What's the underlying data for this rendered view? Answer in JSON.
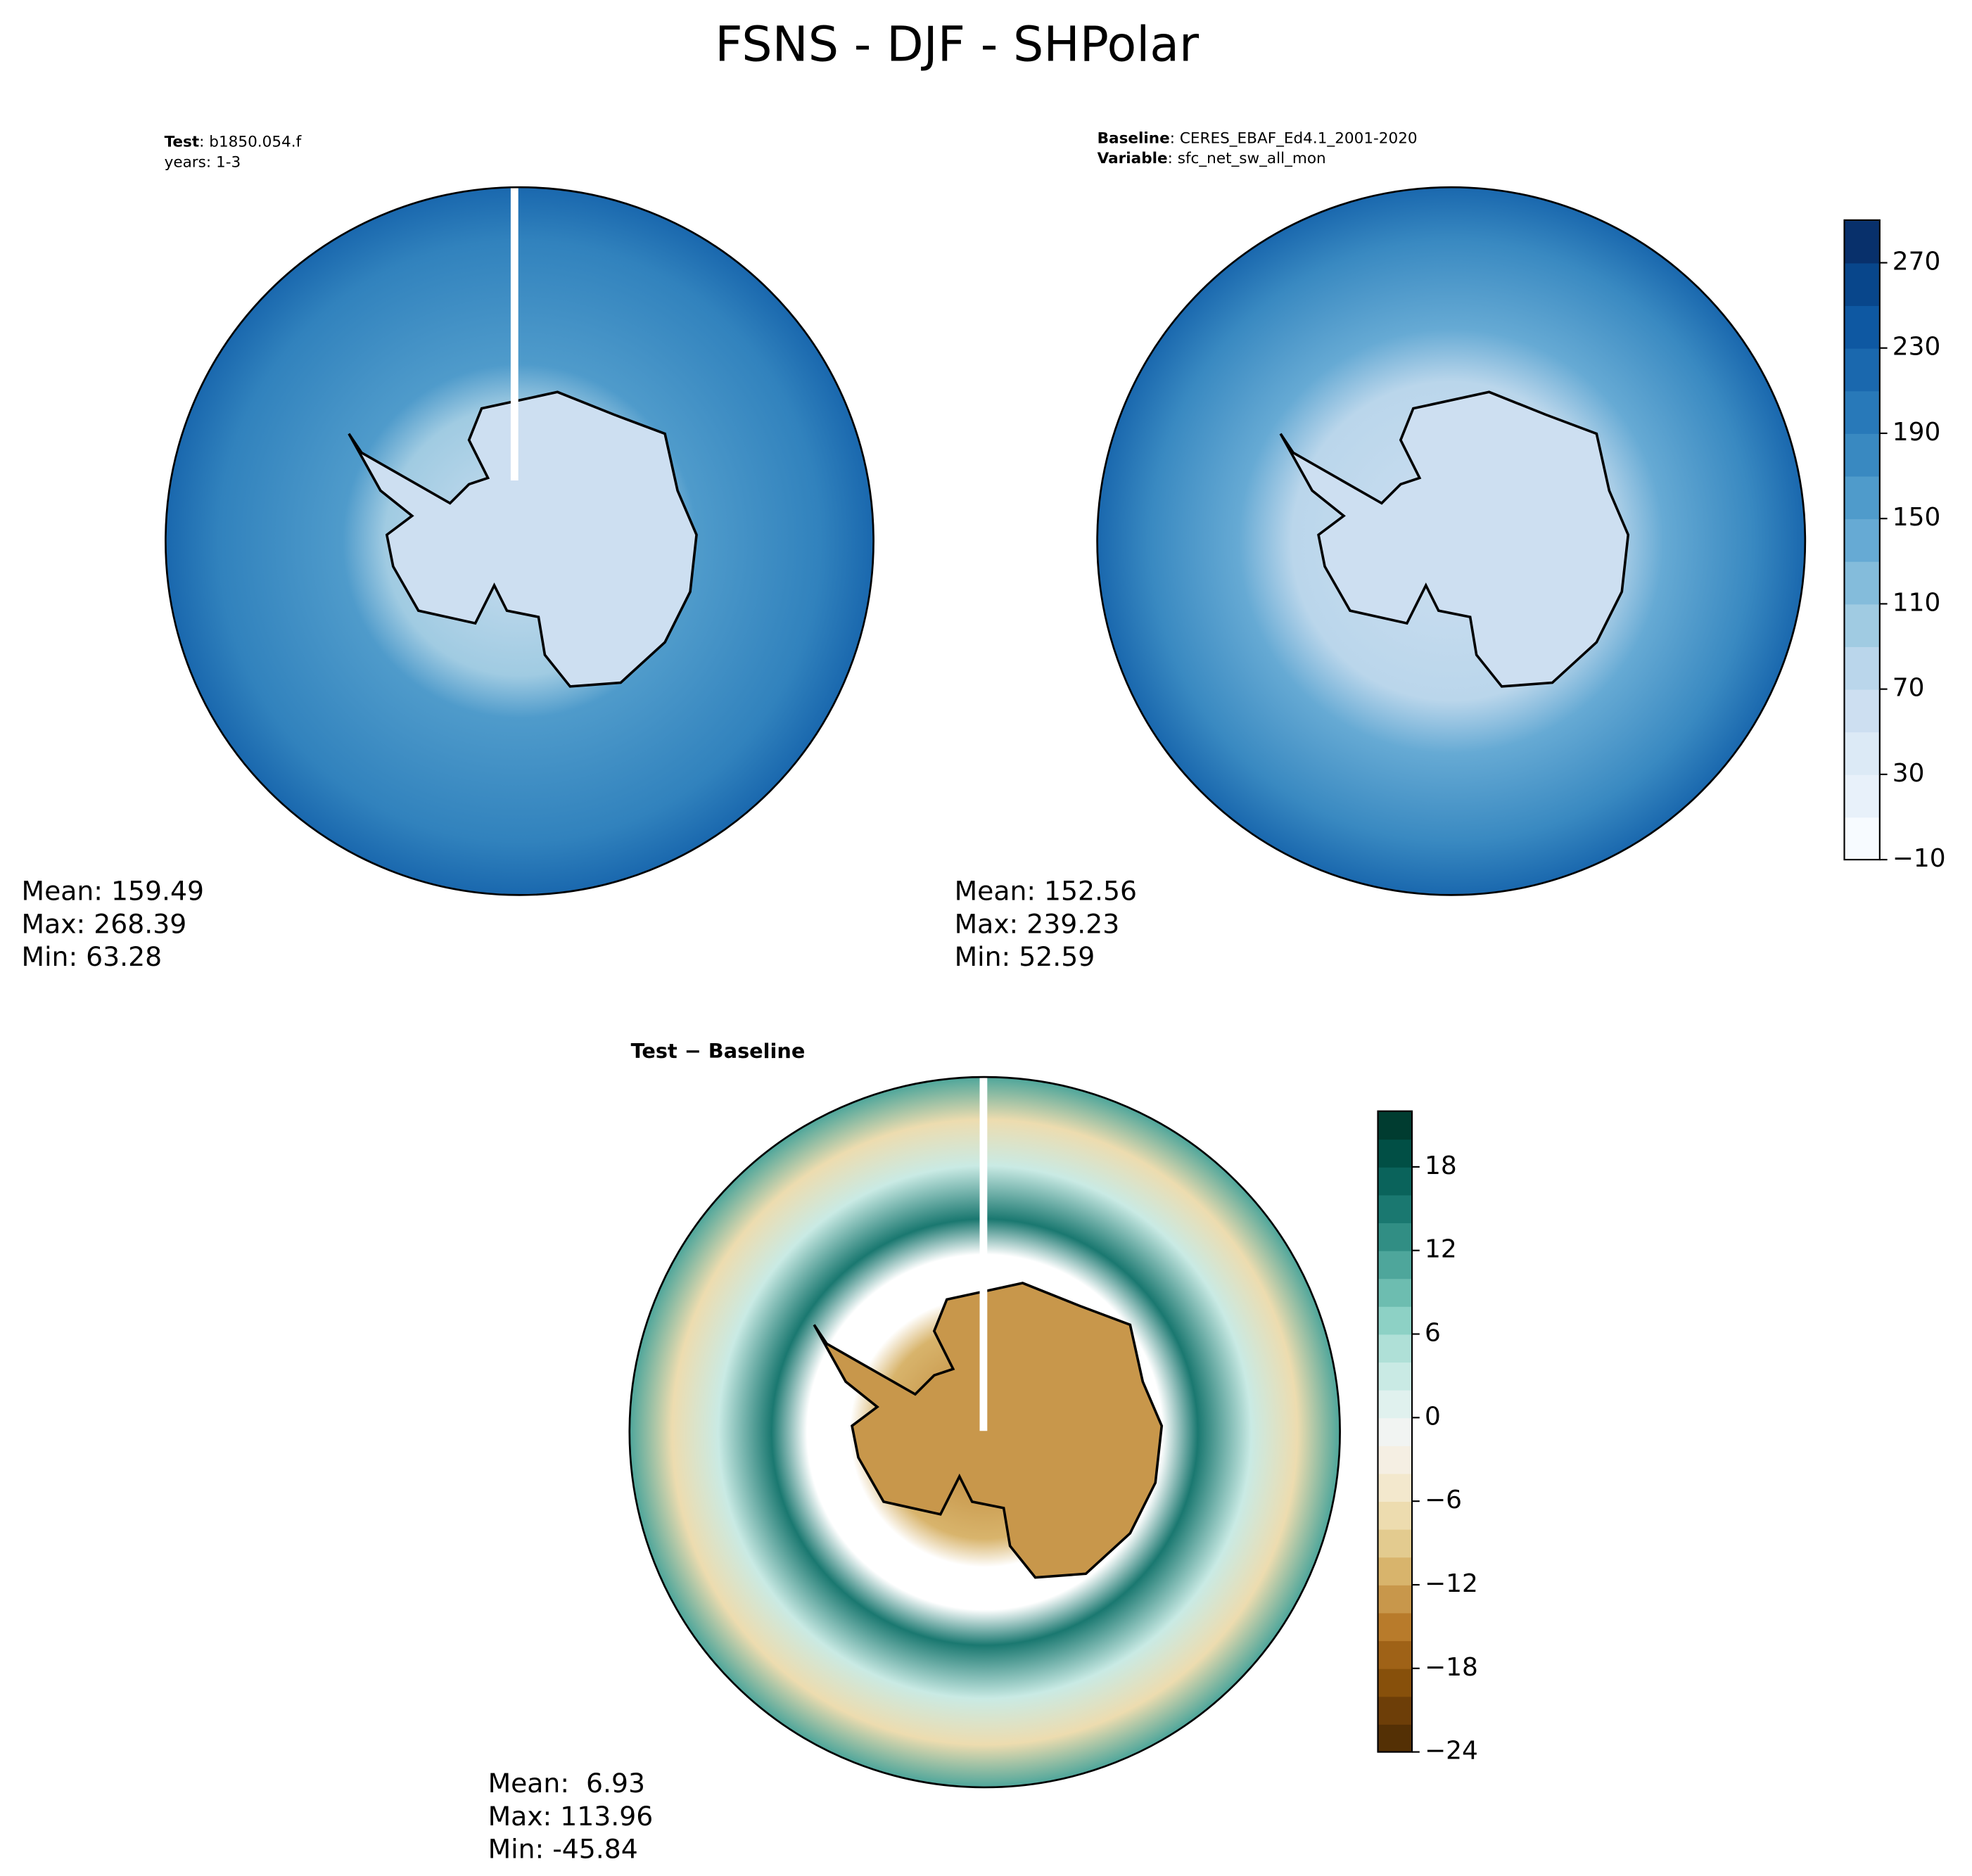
{
  "title": "FSNS - DJF - SHPolar",
  "panels": [
    {
      "lines": [
        {
          "key": "Test",
          "value": ": b1850.054.f"
        },
        {
          "value": "years: 1-3"
        }
      ],
      "stats": [
        "Mean: 159.49",
        "Max: 268.39",
        "Min: 63.28"
      ]
    },
    {
      "lines": [
        {
          "key": "Baseline",
          "value": ": CERES_EBAF_Ed4.1_2001-2020"
        },
        {
          "key": "Variable",
          "value": ": sfc_net_sw_all_mon"
        }
      ],
      "stats": [
        "Mean: 152.56",
        "Max: 239.23",
        "Min: 52.59"
      ]
    },
    {
      "title": "Test − Baseline",
      "stats": [
        "Mean:  6.93",
        "Max: 113.96",
        "Min: -45.84"
      ]
    }
  ],
  "colorbars": [
    {
      "lim": [
        -10,
        290
      ],
      "ticks": [
        {
          "value": -10,
          "label": "−10"
        },
        30,
        70,
        110,
        150,
        190,
        230,
        270
      ],
      "colors": [
        "#f7fbff",
        "#e8f1fa",
        "#dceaf6",
        "#cddff1",
        "#bad6eb",
        "#a0cbe2",
        "#84bcdb",
        "#66aad4",
        "#4f9bcb",
        "#3989c1",
        "#2879b9",
        "#1a68ae",
        "#0e58a2",
        "#08468b",
        "#08306b"
      ]
    },
    {
      "lim": [
        -24,
        22
      ],
      "ticks": [
        {
          "value": -24,
          "label": "−24"
        },
        {
          "value": -18,
          "label": "−18"
        },
        {
          "value": -12,
          "label": "−12"
        },
        {
          "value": -6,
          "label": "−6"
        },
        0,
        6,
        12,
        18
      ],
      "colors": [
        "#543005",
        "#6d3e08",
        "#87500b",
        "#9f6217",
        "#b87b2b",
        "#c8974b",
        "#d8b46c",
        "#e3cb8f",
        "#eddcaf",
        "#f3e8cd",
        "#f5efe3",
        "#f1f4f2",
        "#e0f1ee",
        "#c9eae4",
        "#afe0d7",
        "#8dd1c5",
        "#6dbdb0",
        "#4ea69b",
        "#318e84",
        "#1a7870",
        "#0a635b",
        "#014f45",
        "#003c30"
      ]
    }
  ]
}
